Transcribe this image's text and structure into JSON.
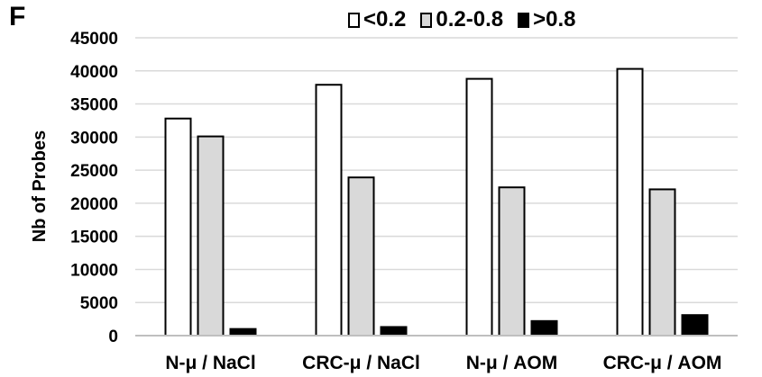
{
  "panel_label": "F",
  "chart_data": {
    "type": "bar",
    "title": "",
    "xlabel": "",
    "ylabel": "Nb of Probes",
    "ylim": [
      0,
      45000
    ],
    "yticks": [
      0,
      5000,
      10000,
      15000,
      20000,
      25000,
      30000,
      35000,
      40000,
      45000
    ],
    "grid": true,
    "legend_position": "top",
    "categories": [
      "N-μ / NaCl",
      "CRC-μ / NaCl",
      "N-μ / AOM",
      "CRC-μ / AOM"
    ],
    "series": [
      {
        "name": "<0.2",
        "color": "#ffffff",
        "values": [
          32800,
          37900,
          38800,
          40300
        ]
      },
      {
        "name": "0.2-0.8",
        "color": "#d9d9d9",
        "values": [
          30100,
          23900,
          22400,
          22100
        ]
      },
      {
        "name": ">0.8",
        "color": "#000000",
        "values": [
          1000,
          1300,
          2200,
          3100
        ]
      }
    ]
  }
}
